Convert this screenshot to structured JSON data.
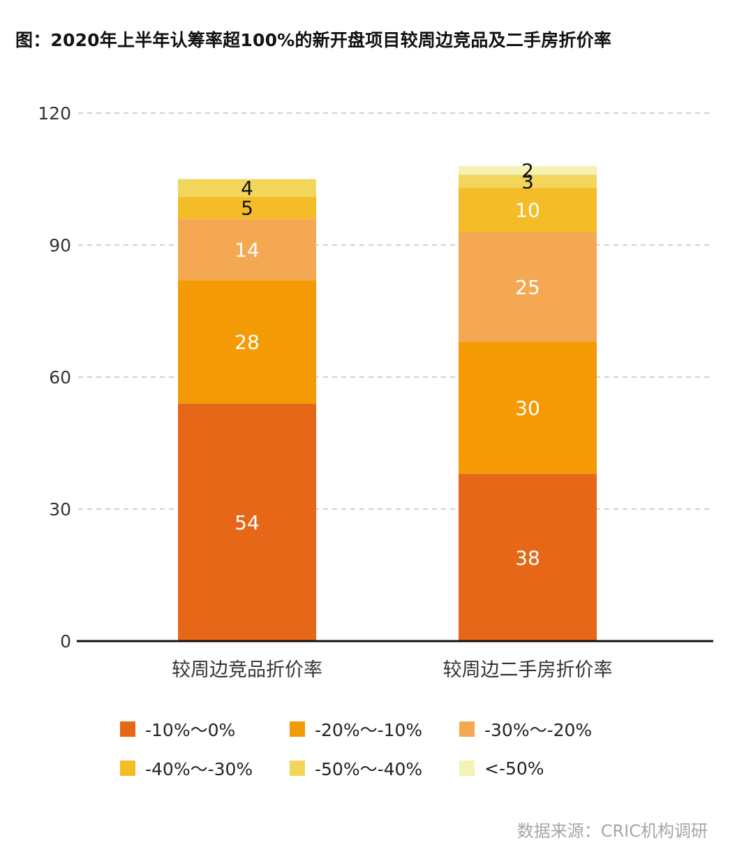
{
  "title": "图：2020年上半年认筹率超100%的新开盘项目较周边竞品及二手房折价率",
  "source": "数据来源：CRIC机构调研",
  "colors": {
    "-10%～0%": "#E56717",
    "-20%～-10%": "#F39A04",
    "-30%～-20%": "#F4A852",
    "-40%～-30%": "#F4BD27",
    "-50%～-40%": "#F2D55B",
    "<-50%": "#F4F2B4"
  },
  "chart_data": {
    "type": "bar",
    "stacked": true,
    "categories": [
      "较周边竞品折价率",
      "较周边二手房折价率"
    ],
    "series": [
      {
        "name": "-10%～0%",
        "color": "#E56717",
        "values": [
          54,
          38
        ]
      },
      {
        "name": "-20%～-10%",
        "color": "#F39A04",
        "values": [
          28,
          30
        ]
      },
      {
        "name": "-30%～-20%",
        "color": "#F4A852",
        "values": [
          14,
          25
        ]
      },
      {
        "name": "-40%～-30%",
        "color": "#F4BD27",
        "values": [
          5,
          10
        ]
      },
      {
        "name": "-50%～-40%",
        "color": "#F2D55B",
        "values": [
          4,
          3
        ]
      },
      {
        "name": "<-50%",
        "color": "#F4F2B4",
        "values": [
          0,
          2
        ]
      }
    ],
    "ylim": [
      0,
      120
    ],
    "yticks": [
      0,
      30,
      60,
      90,
      120
    ],
    "grid": true,
    "legend_position": "bottom",
    "xlabel": "",
    "ylabel": ""
  }
}
